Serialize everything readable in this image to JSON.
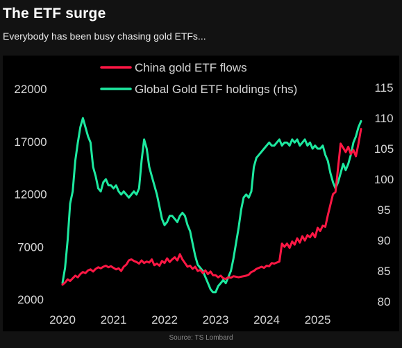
{
  "header": {
    "title": "The ETF surge",
    "subtitle": "Everybody has been busy chasing gold ETFs..."
  },
  "footer": {
    "source": "Source: TS Lombard"
  },
  "chart_data": {
    "type": "line",
    "title": "",
    "xlabel": "",
    "ylabel": "",
    "x_ticks": [
      "2020",
      "2021",
      "2022",
      "2023",
      "2024",
      "2025"
    ],
    "y_left": {
      "ticks": [
        "2000",
        "7000",
        "12000",
        "17000",
        "22000"
      ],
      "lim": [
        2000,
        22000
      ]
    },
    "y_right": {
      "ticks": [
        "80",
        "85",
        "90",
        "95",
        "100",
        "105",
        "110",
        "115"
      ],
      "lim": [
        80,
        115
      ]
    },
    "x_lim": [
      2020,
      2025.85
    ],
    "grid": false,
    "legend_position": "top-center",
    "series": [
      {
        "name": "China gold ETF flows",
        "axis": "left",
        "color": "#ff1744",
        "points": [
          [
            2020.0,
            3400
          ],
          [
            2020.05,
            3600
          ],
          [
            2020.1,
            3900
          ],
          [
            2020.15,
            3750
          ],
          [
            2020.2,
            4000
          ],
          [
            2020.25,
            4250
          ],
          [
            2020.3,
            4100
          ],
          [
            2020.35,
            4400
          ],
          [
            2020.4,
            4600
          ],
          [
            2020.45,
            4500
          ],
          [
            2020.5,
            4750
          ],
          [
            2020.55,
            4850
          ],
          [
            2020.6,
            4650
          ],
          [
            2020.65,
            4900
          ],
          [
            2020.7,
            5050
          ],
          [
            2020.75,
            4950
          ],
          [
            2020.8,
            5100
          ],
          [
            2020.85,
            5200
          ],
          [
            2020.9,
            5050
          ],
          [
            2020.95,
            5150
          ],
          [
            2021.0,
            5000
          ],
          [
            2021.05,
            4850
          ],
          [
            2021.1,
            4950
          ],
          [
            2021.15,
            4700
          ],
          [
            2021.2,
            5100
          ],
          [
            2021.25,
            5300
          ],
          [
            2021.3,
            5700
          ],
          [
            2021.35,
            5800
          ],
          [
            2021.4,
            5650
          ],
          [
            2021.45,
            5550
          ],
          [
            2021.5,
            5400
          ],
          [
            2021.55,
            5700
          ],
          [
            2021.6,
            5450
          ],
          [
            2021.65,
            5600
          ],
          [
            2021.7,
            5500
          ],
          [
            2021.75,
            5800
          ],
          [
            2021.8,
            5250
          ],
          [
            2021.85,
            5400
          ],
          [
            2021.9,
            5200
          ],
          [
            2021.95,
            5650
          ],
          [
            2022.0,
            5450
          ],
          [
            2022.05,
            5900
          ],
          [
            2022.1,
            5550
          ],
          [
            2022.15,
            5800
          ],
          [
            2022.2,
            6000
          ],
          [
            2022.25,
            5700
          ],
          [
            2022.3,
            6300
          ],
          [
            2022.35,
            5800
          ],
          [
            2022.4,
            5450
          ],
          [
            2022.45,
            5100
          ],
          [
            2022.5,
            5200
          ],
          [
            2022.55,
            4900
          ],
          [
            2022.6,
            5100
          ],
          [
            2022.65,
            4700
          ],
          [
            2022.7,
            4800
          ],
          [
            2022.75,
            4500
          ],
          [
            2022.8,
            4750
          ],
          [
            2022.85,
            4400
          ],
          [
            2022.9,
            4650
          ],
          [
            2022.95,
            4300
          ],
          [
            2023.0,
            4300
          ],
          [
            2023.05,
            4100
          ],
          [
            2023.1,
            4250
          ],
          [
            2023.15,
            4000
          ],
          [
            2023.2,
            3950
          ],
          [
            2023.25,
            4100
          ],
          [
            2023.3,
            4050
          ],
          [
            2023.35,
            4200
          ],
          [
            2023.4,
            4150
          ],
          [
            2023.45,
            4100
          ],
          [
            2023.5,
            4150
          ],
          [
            2023.55,
            4200
          ],
          [
            2023.6,
            4250
          ],
          [
            2023.65,
            4350
          ],
          [
            2023.7,
            4600
          ],
          [
            2023.75,
            4700
          ],
          [
            2023.8,
            4900
          ],
          [
            2023.85,
            5000
          ],
          [
            2023.9,
            5100
          ],
          [
            2023.95,
            5000
          ],
          [
            2024.0,
            5200
          ],
          [
            2024.05,
            5150
          ],
          [
            2024.1,
            5450
          ],
          [
            2024.15,
            5400
          ],
          [
            2024.2,
            5500
          ],
          [
            2024.25,
            5600
          ],
          [
            2024.3,
            7300
          ],
          [
            2024.35,
            7000
          ],
          [
            2024.4,
            7300
          ],
          [
            2024.45,
            6900
          ],
          [
            2024.5,
            7500
          ],
          [
            2024.55,
            7200
          ],
          [
            2024.6,
            7800
          ],
          [
            2024.65,
            7400
          ],
          [
            2024.7,
            8000
          ],
          [
            2024.75,
            7600
          ],
          [
            2024.8,
            8100
          ],
          [
            2024.85,
            7900
          ],
          [
            2024.9,
            8300
          ],
          [
            2024.95,
            7900
          ],
          [
            2025.0,
            8800
          ],
          [
            2025.05,
            8500
          ],
          [
            2025.1,
            9000
          ],
          [
            2025.15,
            8900
          ],
          [
            2025.2,
            10000
          ],
          [
            2025.25,
            11000
          ],
          [
            2025.3,
            12000
          ],
          [
            2025.35,
            12200
          ],
          [
            2025.4,
            14500
          ],
          [
            2025.45,
            16800
          ],
          [
            2025.5,
            16400
          ],
          [
            2025.55,
            16000
          ],
          [
            2025.6,
            16500
          ],
          [
            2025.65,
            15800
          ],
          [
            2025.7,
            16200
          ],
          [
            2025.75,
            15600
          ],
          [
            2025.8,
            16800
          ],
          [
            2025.85,
            18200
          ]
        ]
      },
      {
        "name": "Global Gold ETF holdings (rhs)",
        "axis": "right",
        "color": "#1de9a0",
        "points": [
          [
            2020.0,
            83.0
          ],
          [
            2020.05,
            85.5
          ],
          [
            2020.1,
            90.0
          ],
          [
            2020.15,
            96.0
          ],
          [
            2020.2,
            98.0
          ],
          [
            2020.25,
            103.0
          ],
          [
            2020.3,
            106.0
          ],
          [
            2020.35,
            108.5
          ],
          [
            2020.4,
            110.0
          ],
          [
            2020.45,
            108.5
          ],
          [
            2020.5,
            107.0
          ],
          [
            2020.55,
            106.0
          ],
          [
            2020.6,
            102.0
          ],
          [
            2020.65,
            100.5
          ],
          [
            2020.7,
            98.5
          ],
          [
            2020.75,
            98.0
          ],
          [
            2020.8,
            99.5
          ],
          [
            2020.85,
            100.0
          ],
          [
            2020.9,
            99.0
          ],
          [
            2020.95,
            99.0
          ],
          [
            2021.0,
            98.5
          ],
          [
            2021.05,
            99.0
          ],
          [
            2021.1,
            98.0
          ],
          [
            2021.15,
            97.5
          ],
          [
            2021.2,
            98.0
          ],
          [
            2021.25,
            97.5
          ],
          [
            2021.3,
            97.0
          ],
          [
            2021.35,
            97.5
          ],
          [
            2021.4,
            98.0
          ],
          [
            2021.45,
            97.5
          ],
          [
            2021.5,
            98.5
          ],
          [
            2021.55,
            103.0
          ],
          [
            2021.6,
            106.5
          ],
          [
            2021.65,
            105.0
          ],
          [
            2021.7,
            102.0
          ],
          [
            2021.75,
            100.5
          ],
          [
            2021.8,
            99.0
          ],
          [
            2021.85,
            97.5
          ],
          [
            2021.9,
            95.5
          ],
          [
            2021.95,
            93.5
          ],
          [
            2022.0,
            92.5
          ],
          [
            2022.05,
            93.0
          ],
          [
            2022.1,
            94.0
          ],
          [
            2022.15,
            94.0
          ],
          [
            2022.2,
            93.5
          ],
          [
            2022.25,
            93.0
          ],
          [
            2022.3,
            94.0
          ],
          [
            2022.35,
            94.5
          ],
          [
            2022.4,
            94.0
          ],
          [
            2022.45,
            92.5
          ],
          [
            2022.5,
            91.5
          ],
          [
            2022.55,
            89.5
          ],
          [
            2022.6,
            87.5
          ],
          [
            2022.65,
            86.0
          ],
          [
            2022.7,
            85.5
          ],
          [
            2022.75,
            85.0
          ],
          [
            2022.8,
            84.0
          ],
          [
            2022.85,
            83.0
          ],
          [
            2022.9,
            82.0
          ],
          [
            2022.95,
            81.5
          ],
          [
            2023.0,
            81.5
          ],
          [
            2023.05,
            82.5
          ],
          [
            2023.1,
            83.0
          ],
          [
            2023.15,
            83.5
          ],
          [
            2023.2,
            83.0
          ],
          [
            2023.25,
            84.0
          ],
          [
            2023.3,
            85.0
          ],
          [
            2023.35,
            87.0
          ],
          [
            2023.4,
            89.5
          ],
          [
            2023.45,
            92.0
          ],
          [
            2023.5,
            95.0
          ],
          [
            2023.55,
            97.0
          ],
          [
            2023.6,
            97.5
          ],
          [
            2023.65,
            97.0
          ],
          [
            2023.7,
            98.0
          ],
          [
            2023.75,
            102.0
          ],
          [
            2023.8,
            103.5
          ],
          [
            2023.85,
            104.0
          ],
          [
            2023.9,
            104.5
          ],
          [
            2023.95,
            105.0
          ],
          [
            2024.0,
            105.5
          ],
          [
            2024.05,
            106.0
          ],
          [
            2024.1,
            105.5
          ],
          [
            2024.15,
            105.5
          ],
          [
            2024.2,
            106.0
          ],
          [
            2024.25,
            106.5
          ],
          [
            2024.3,
            105.5
          ],
          [
            2024.35,
            106.0
          ],
          [
            2024.4,
            106.0
          ],
          [
            2024.45,
            105.5
          ],
          [
            2024.5,
            106.5
          ],
          [
            2024.55,
            106.0
          ],
          [
            2024.6,
            106.5
          ],
          [
            2024.65,
            105.5
          ],
          [
            2024.7,
            106.0
          ],
          [
            2024.75,
            106.5
          ],
          [
            2024.8,
            105.5
          ],
          [
            2024.85,
            106.0
          ],
          [
            2024.9,
            105.0
          ],
          [
            2024.95,
            105.5
          ],
          [
            2025.0,
            105.0
          ],
          [
            2025.05,
            105.0
          ],
          [
            2025.1,
            105.5
          ],
          [
            2025.15,
            104.0
          ],
          [
            2025.2,
            103.0
          ],
          [
            2025.25,
            101.0
          ],
          [
            2025.3,
            99.5
          ],
          [
            2025.35,
            98.5
          ],
          [
            2025.4,
            99.5
          ],
          [
            2025.45,
            101.0
          ],
          [
            2025.5,
            102.5
          ],
          [
            2025.55,
            101.5
          ],
          [
            2025.6,
            102.5
          ],
          [
            2025.65,
            104.0
          ],
          [
            2025.7,
            106.0
          ],
          [
            2025.75,
            107.0
          ],
          [
            2025.8,
            108.5
          ],
          [
            2025.85,
            109.5
          ]
        ]
      }
    ]
  }
}
